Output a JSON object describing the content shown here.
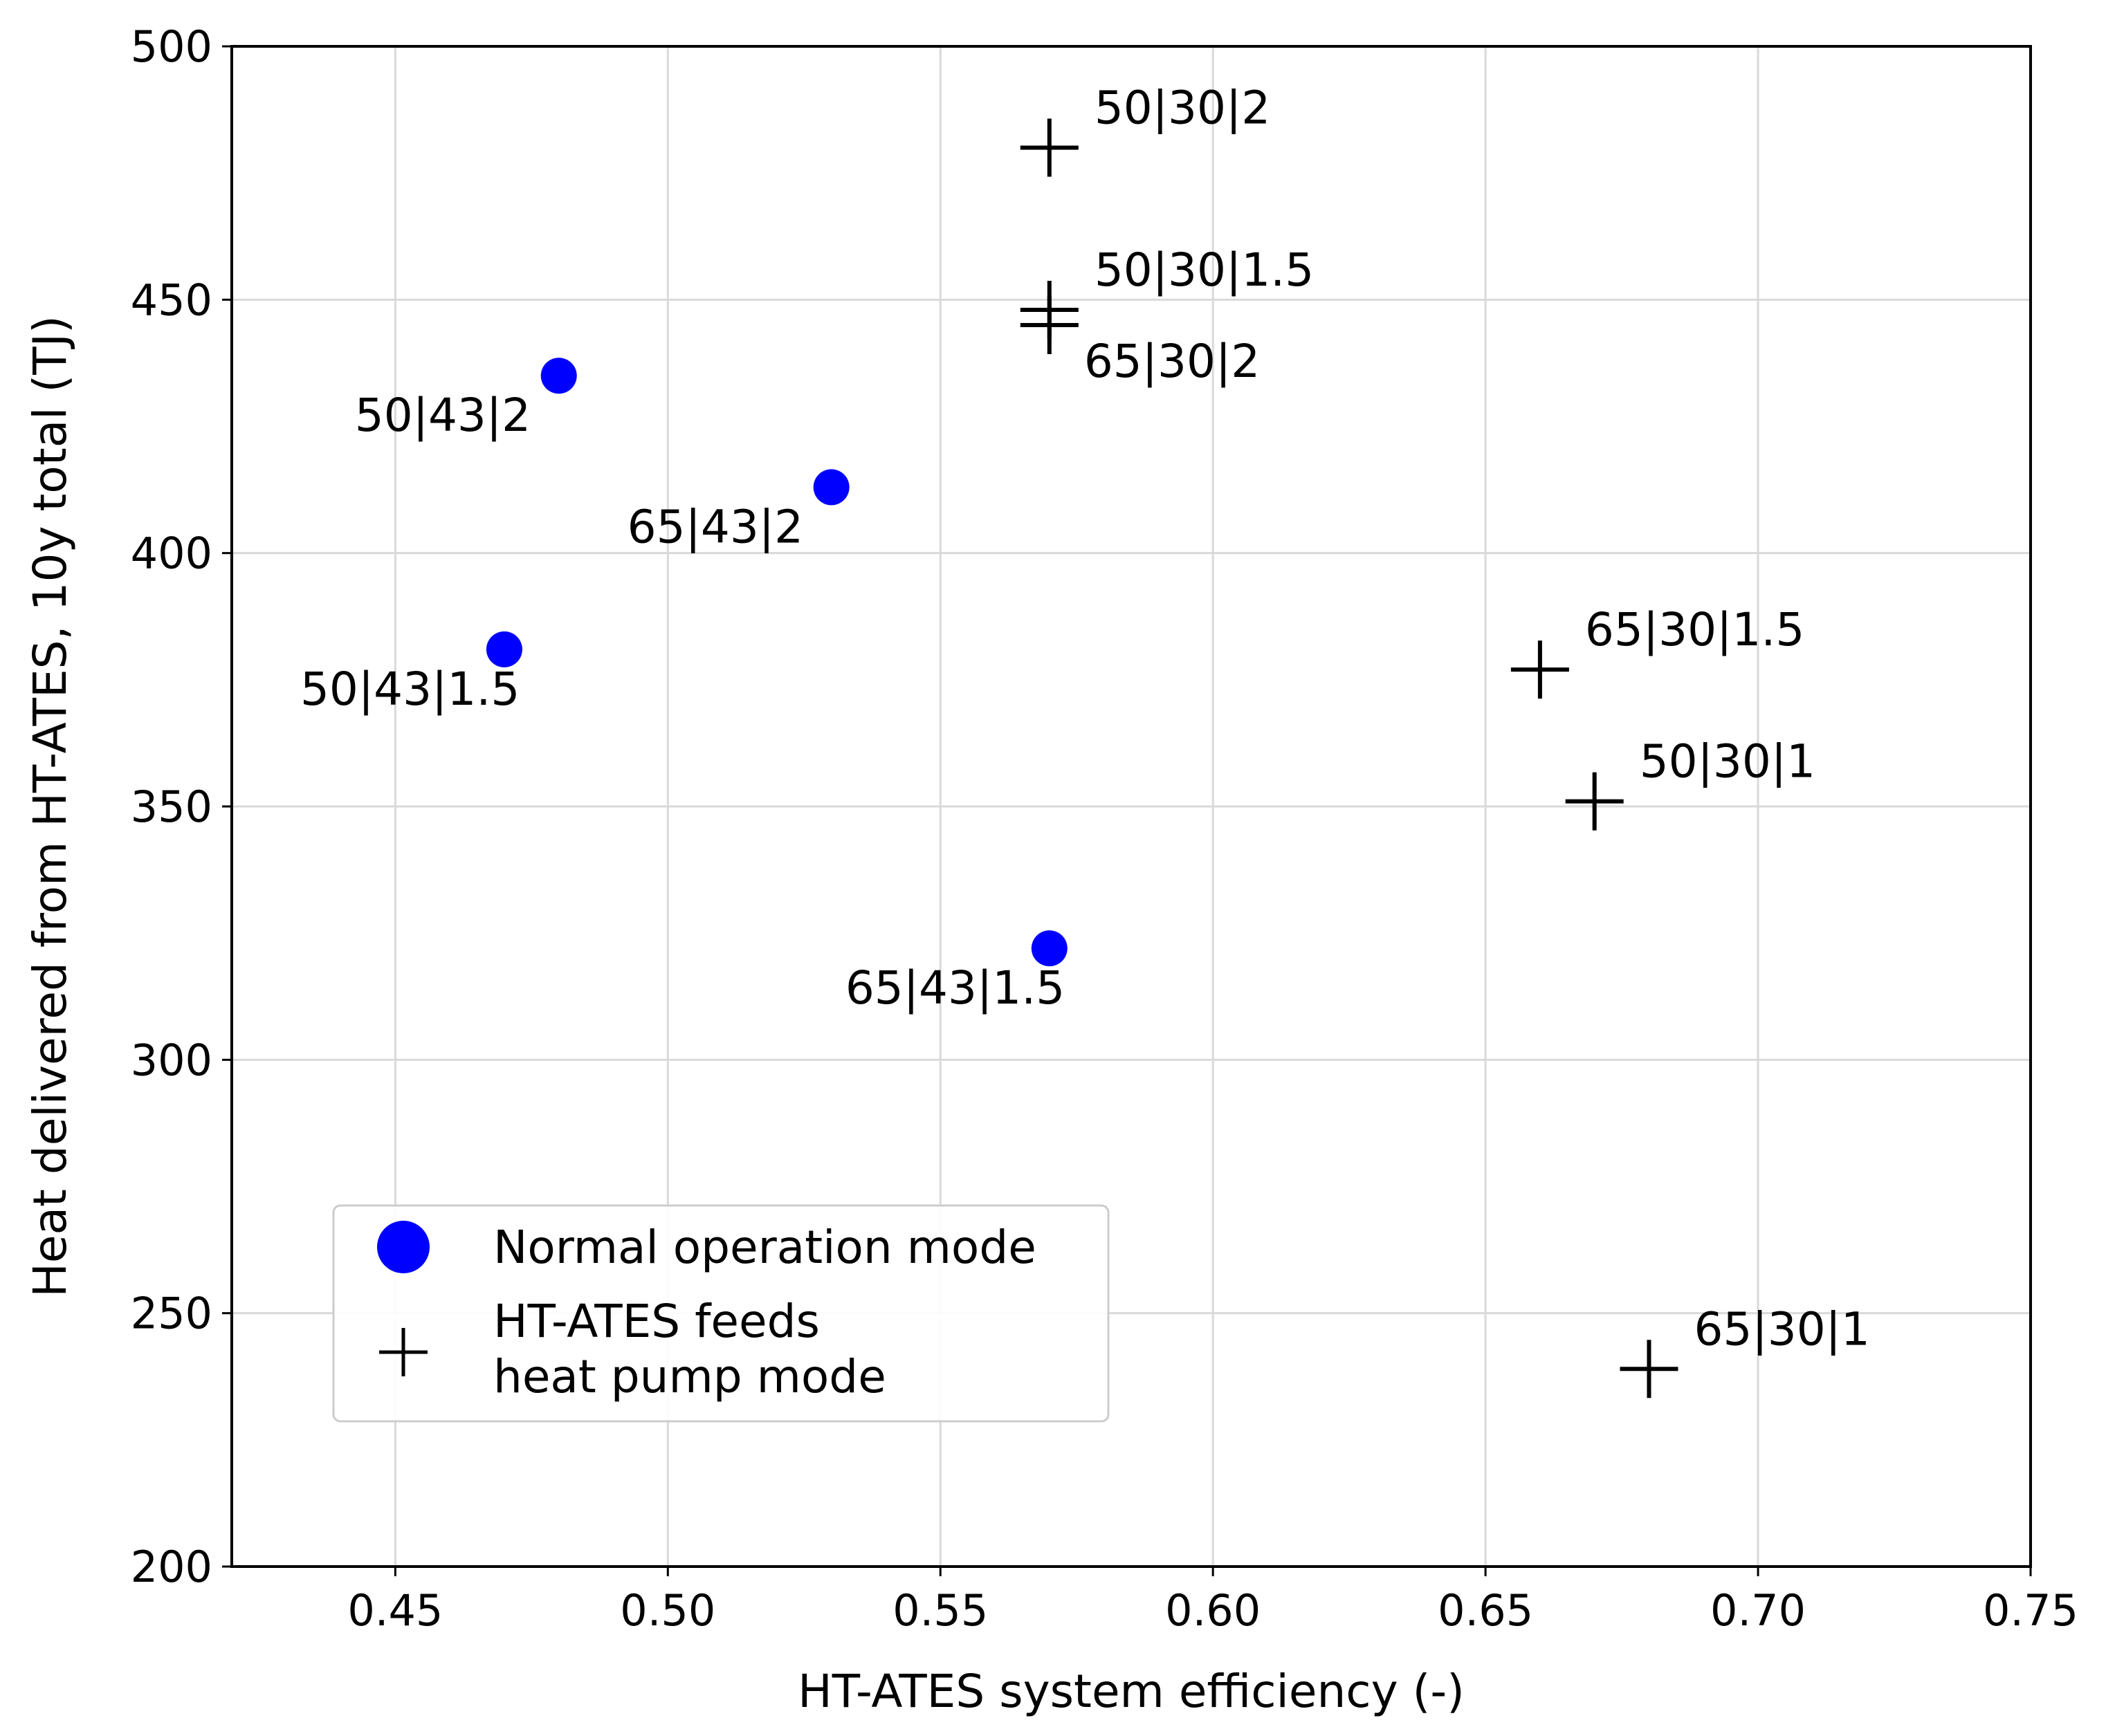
{
  "chart_data": {
    "type": "scatter",
    "title": "",
    "xlabel": "HT-ATES system efficiency (-)",
    "ylabel": "Heat delivered from HT-ATES, 10y total (TJ)",
    "xlim": [
      0.42,
      0.75
    ],
    "ylim": [
      200,
      500
    ],
    "xticks": [
      "0.45",
      "0.50",
      "0.55",
      "0.60",
      "0.65",
      "0.70",
      "0.75"
    ],
    "yticks": [
      "200",
      "250",
      "300",
      "350",
      "400",
      "450",
      "500"
    ],
    "grid": true,
    "legend_position": "lower-left",
    "series": [
      {
        "name": "Normal operation mode",
        "marker": "circle",
        "color": "#0000ff",
        "points": [
          {
            "x": 0.48,
            "y": 435,
            "label": "50|43|2"
          },
          {
            "x": 0.53,
            "y": 413,
            "label": "65|43|2"
          },
          {
            "x": 0.47,
            "y": 381,
            "label": "50|43|1.5"
          },
          {
            "x": 0.57,
            "y": 322,
            "label": "65|43|1.5"
          }
        ]
      },
      {
        "name_lines": [
          "HT-ATES feeds",
          "heat pump mode"
        ],
        "marker": "plus",
        "color": "#000000",
        "points": [
          {
            "x": 0.57,
            "y": 480,
            "label": "50|30|2"
          },
          {
            "x": 0.57,
            "y": 448,
            "label": "50|30|1.5"
          },
          {
            "x": 0.57,
            "y": 445,
            "label": "65|30|2"
          },
          {
            "x": 0.66,
            "y": 377,
            "label": "65|30|1.5"
          },
          {
            "x": 0.67,
            "y": 351,
            "label": "50|30|1"
          },
          {
            "x": 0.68,
            "y": 239,
            "label": "65|30|1"
          }
        ]
      }
    ]
  }
}
